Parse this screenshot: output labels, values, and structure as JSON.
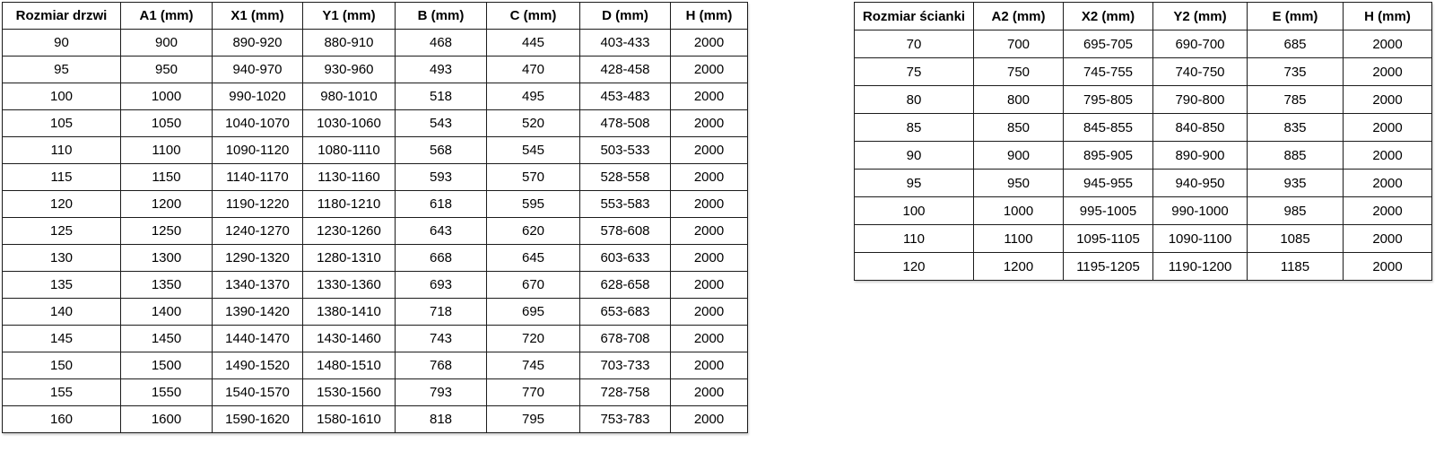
{
  "colors": {
    "background": "#ffffff",
    "border": "#1c1c1c",
    "text": "#000000"
  },
  "left_table": {
    "headers": [
      "Rozmiar drzwi",
      "A1 (mm)",
      "X1 (mm)",
      "Y1 (mm)",
      "B (mm)",
      "C (mm)",
      "D (mm)",
      "H (mm)"
    ],
    "rows": [
      [
        "90",
        "900",
        "890-920",
        "880-910",
        "468",
        "445",
        "403-433",
        "2000"
      ],
      [
        "95",
        "950",
        "940-970",
        "930-960",
        "493",
        "470",
        "428-458",
        "2000"
      ],
      [
        "100",
        "1000",
        "990-1020",
        "980-1010",
        "518",
        "495",
        "453-483",
        "2000"
      ],
      [
        "105",
        "1050",
        "1040-1070",
        "1030-1060",
        "543",
        "520",
        "478-508",
        "2000"
      ],
      [
        "110",
        "1100",
        "1090-1120",
        "1080-1110",
        "568",
        "545",
        "503-533",
        "2000"
      ],
      [
        "115",
        "1150",
        "1140-1170",
        "1130-1160",
        "593",
        "570",
        "528-558",
        "2000"
      ],
      [
        "120",
        "1200",
        "1190-1220",
        "1180-1210",
        "618",
        "595",
        "553-583",
        "2000"
      ],
      [
        "125",
        "1250",
        "1240-1270",
        "1230-1260",
        "643",
        "620",
        "578-608",
        "2000"
      ],
      [
        "130",
        "1300",
        "1290-1320",
        "1280-1310",
        "668",
        "645",
        "603-633",
        "2000"
      ],
      [
        "135",
        "1350",
        "1340-1370",
        "1330-1360",
        "693",
        "670",
        "628-658",
        "2000"
      ],
      [
        "140",
        "1400",
        "1390-1420",
        "1380-1410",
        "718",
        "695",
        "653-683",
        "2000"
      ],
      [
        "145",
        "1450",
        "1440-1470",
        "1430-1460",
        "743",
        "720",
        "678-708",
        "2000"
      ],
      [
        "150",
        "1500",
        "1490-1520",
        "1480-1510",
        "768",
        "745",
        "703-733",
        "2000"
      ],
      [
        "155",
        "1550",
        "1540-1570",
        "1530-1560",
        "793",
        "770",
        "728-758",
        "2000"
      ],
      [
        "160",
        "1600",
        "1590-1620",
        "1580-1610",
        "818",
        "795",
        "753-783",
        "2000"
      ]
    ]
  },
  "right_table": {
    "headers": [
      "Rozmiar ścianki",
      "A2 (mm)",
      "X2 (mm)",
      "Y2 (mm)",
      "E (mm)",
      "H (mm)"
    ],
    "rows": [
      [
        "70",
        "700",
        "695-705",
        "690-700",
        "685",
        "2000"
      ],
      [
        "75",
        "750",
        "745-755",
        "740-750",
        "735",
        "2000"
      ],
      [
        "80",
        "800",
        "795-805",
        "790-800",
        "785",
        "2000"
      ],
      [
        "85",
        "850",
        "845-855",
        "840-850",
        "835",
        "2000"
      ],
      [
        "90",
        "900",
        "895-905",
        "890-900",
        "885",
        "2000"
      ],
      [
        "95",
        "950",
        "945-955",
        "940-950",
        "935",
        "2000"
      ],
      [
        "100",
        "1000",
        "995-1005",
        "990-1000",
        "985",
        "2000"
      ],
      [
        "110",
        "1100",
        "1095-1105",
        "1090-1100",
        "1085",
        "2000"
      ],
      [
        "120",
        "1200",
        "1195-1205",
        "1190-1200",
        "1185",
        "2000"
      ]
    ]
  }
}
